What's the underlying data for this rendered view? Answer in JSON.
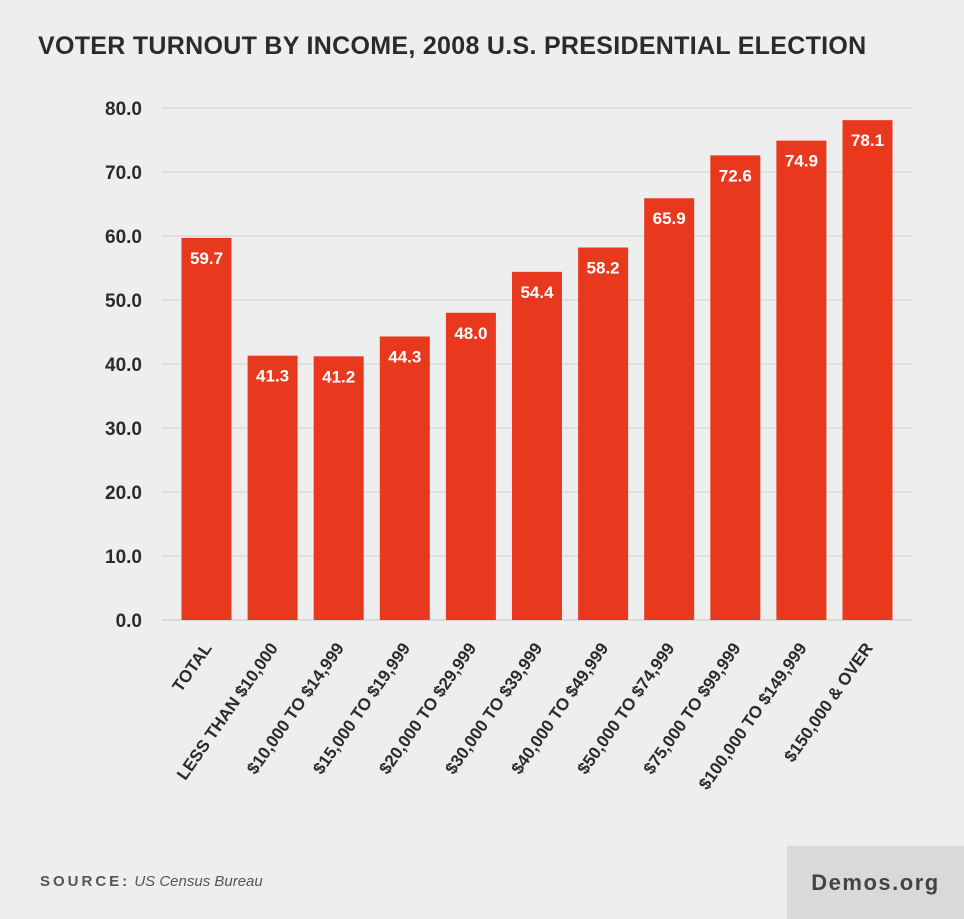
{
  "title": "VOTER TURNOUT BY INCOME, 2008 U.S. PRESIDENTIAL ELECTION",
  "source_label": "SOURCE:",
  "source_text": "US Census Bureau",
  "brand": "Demos.org",
  "colors": {
    "bar": "#e8391f",
    "background": "#eeeeee",
    "grid": "#d2d2d2",
    "text": "#2b2b2b"
  },
  "chart_data": {
    "type": "bar",
    "title": "VOTER TURNOUT BY INCOME, 2008 U.S. PRESIDENTIAL ELECTION",
    "categories": [
      "TOTAL",
      "LESS THAN $10,000",
      "$10,000 TO $14,999",
      "$15,000 TO $19,999",
      "$20,000 TO $29,999",
      "$30,000 TO $39,999",
      "$40,000 TO $49,999",
      "$50,000 TO $74,999",
      "$75,000 TO $99,999",
      "$100,000 TO $149,999",
      "$150,000 & OVER"
    ],
    "values": [
      59.7,
      41.3,
      41.2,
      44.3,
      48.0,
      54.4,
      58.2,
      65.9,
      72.6,
      74.9,
      78.1
    ],
    "value_labels": [
      "59.7",
      "41.3",
      "41.2",
      "44.3",
      "48.0",
      "54.4",
      "58.2",
      "65.9",
      "72.6",
      "74.9",
      "78.1"
    ],
    "yticks": [
      "0.0",
      "10.0",
      "20.0",
      "30.0",
      "40.0",
      "50.0",
      "60.0",
      "70.0",
      "80.0"
    ],
    "ylim": [
      0,
      80
    ],
    "grid": true,
    "legend": "none"
  }
}
